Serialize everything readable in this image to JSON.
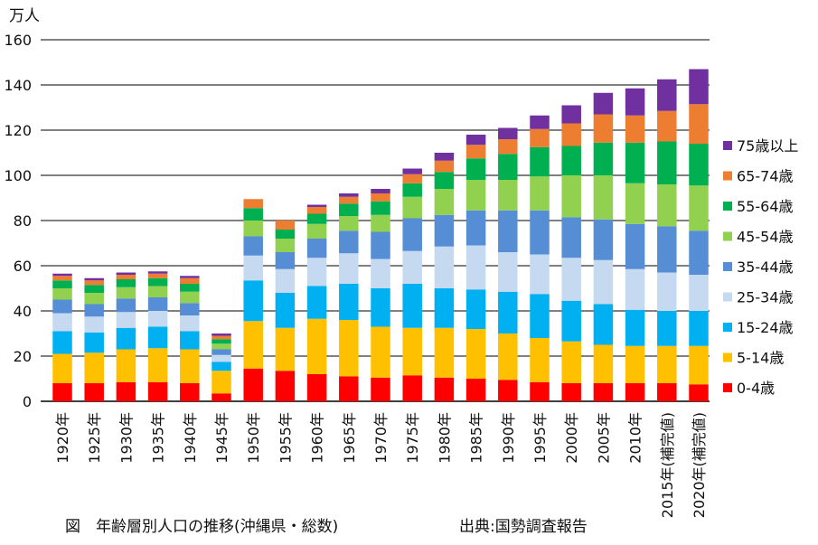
{
  "chart_data": {
    "type": "bar",
    "stacked": true,
    "unit": "万人",
    "ylim": [
      0,
      160
    ],
    "yticks": [
      0,
      20,
      40,
      60,
      80,
      100,
      120,
      140,
      160
    ],
    "grid": true,
    "legend_position": "right",
    "categories": [
      "1920年",
      "1925年",
      "1930年",
      "1935年",
      "1940年",
      "1945年",
      "1950年",
      "1955年",
      "1960年",
      "1965年",
      "1970年",
      "1975年",
      "1980年",
      "1985年",
      "1990年",
      "1995年",
      "2000年",
      "2005年",
      "2010年",
      "2015年(補完値)",
      "2020年(補完値)"
    ],
    "series": [
      {
        "name": "0-4歳",
        "color": "#ff0000",
        "values": [
          8,
          8,
          8.5,
          8.5,
          8,
          3.5,
          14.5,
          13.5,
          12,
          11,
          10.5,
          11.5,
          10.5,
          10,
          9.5,
          8.5,
          8,
          8,
          8,
          8,
          7.5
        ]
      },
      {
        "name": "5-14歳",
        "color": "#ffc000",
        "values": [
          13,
          13.5,
          14.5,
          15,
          15,
          10,
          21,
          19,
          24.5,
          25,
          22.5,
          21,
          22,
          22,
          20.5,
          19.5,
          18.5,
          17,
          16.5,
          16.5,
          17
        ]
      },
      {
        "name": "15-24歳",
        "color": "#00b0f0",
        "values": [
          10,
          9,
          9.5,
          9.5,
          8,
          4,
          18,
          15.5,
          14.5,
          16,
          17,
          19.5,
          17.5,
          17.5,
          18.5,
          19.5,
          18,
          18,
          16,
          15.5,
          15.5
        ]
      },
      {
        "name": "25-34歳",
        "color": "#c5d9f1",
        "values": [
          8,
          7,
          7,
          7,
          7,
          3,
          11,
          10.5,
          12.5,
          13.5,
          13,
          14.5,
          18.5,
          19.5,
          17.5,
          17.5,
          19,
          19.5,
          18,
          17,
          16
        ]
      },
      {
        "name": "35-44歳",
        "color": "#558ed5",
        "values": [
          6,
          5.5,
          6,
          6,
          5.5,
          2.5,
          8.5,
          7.5,
          8.5,
          10,
          12,
          14.5,
          14,
          15.5,
          18.5,
          19.5,
          18,
          18,
          20,
          20.5,
          19.5
        ]
      },
      {
        "name": "45-54歳",
        "color": "#92d050",
        "values": [
          5,
          5,
          5,
          5,
          5,
          2.5,
          7,
          6,
          6.5,
          6.5,
          7.5,
          9.5,
          11.5,
          13.5,
          13.5,
          15,
          18.5,
          19.5,
          18,
          18.5,
          20
        ]
      },
      {
        "name": "55-64歳",
        "color": "#00b050",
        "values": [
          3.5,
          3.5,
          3.5,
          3.5,
          3.5,
          2,
          5.5,
          4,
          4.5,
          5.5,
          6,
          6,
          7.5,
          9.5,
          11.5,
          13,
          13,
          14.5,
          18,
          19,
          18.5
        ]
      },
      {
        "name": "65-74歳",
        "color": "#ed7d31",
        "values": [
          2,
          2,
          2,
          2,
          2.5,
          1.5,
          4,
          4,
          3,
          3,
          3.5,
          4,
          5,
          6,
          6.5,
          8,
          10,
          12.5,
          12,
          13.5,
          17.5
        ]
      },
      {
        "name": "75歳以上",
        "color": "#7030a0",
        "values": [
          1,
          1,
          1,
          1,
          1,
          1,
          0,
          0,
          1,
          1.5,
          2,
          2.5,
          3.5,
          4.5,
          5,
          6,
          8,
          9.5,
          12,
          14,
          15.5
        ]
      }
    ]
  },
  "caption": "図　年齢層別人口の推移(沖縄県・総数)",
  "source": "出典:国勢調査報告"
}
